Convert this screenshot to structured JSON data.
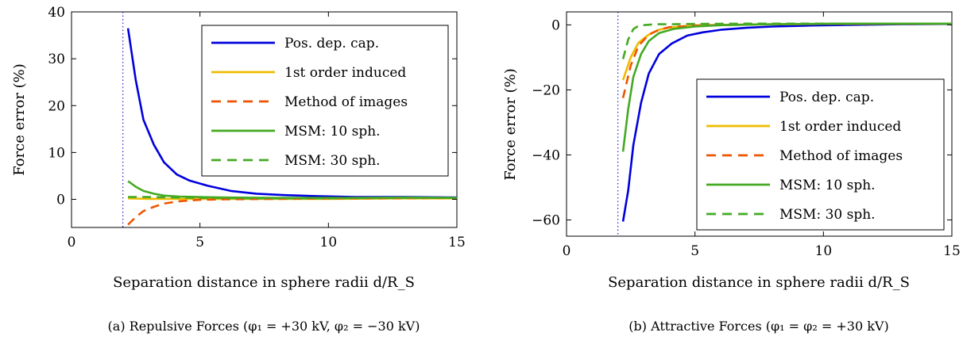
{
  "chart_data": [
    {
      "type": "line",
      "caption": "(a) Repulsive Forces (φ₁ = +30 kV, φ₂ = −30 kV)",
      "xlabel": "Separation distance in sphere radii d/R_S",
      "ylabel": "Force error (%)",
      "xlim": [
        0,
        15
      ],
      "ylim": [
        -6,
        40
      ],
      "xticks": [
        0,
        5,
        10,
        15
      ],
      "yticks": [
        0,
        10,
        20,
        30,
        40
      ],
      "ytick_labels": [
        "0",
        "10",
        "20",
        "30",
        "40"
      ],
      "vline_x": 2,
      "grid": false,
      "legend_position": "top-right",
      "series": [
        {
          "name": "Pos. dep. cap.",
          "color": "#0000dd",
          "dash": "solid",
          "x": [
            2.2,
            2.5,
            2.8,
            3.2,
            3.6,
            4.1,
            4.6,
            5.3,
            6.2,
            7.2,
            8.3,
            9.5,
            11,
            13,
            15
          ],
          "y": [
            36.5,
            25.5,
            17,
            11.7,
            7.9,
            5.3,
            4,
            2.9,
            1.8,
            1.2,
            0.9,
            0.7,
            0.5,
            0.5,
            0.4
          ]
        },
        {
          "name": "1st order induced",
          "color": "#eebb00",
          "dash": "solid",
          "x": [
            2.2,
            3,
            4,
            5,
            7,
            10,
            13,
            15
          ],
          "y": [
            0.2,
            0.1,
            0.1,
            0.1,
            0.1,
            0.1,
            0.2,
            0.2
          ]
        },
        {
          "name": "Method of images",
          "color": "#ee5500",
          "dash": "dashed",
          "x": [
            2.2,
            2.5,
            2.8,
            3.2,
            3.6,
            4.2,
            5,
            6,
            8,
            11,
            15
          ],
          "y": [
            -5.4,
            -3.8,
            -2.5,
            -1.6,
            -0.9,
            -0.4,
            -0.1,
            0,
            0.1,
            0.2,
            0.3
          ]
        },
        {
          "name": "MSM: 10 sph.",
          "color": "#44aa22",
          "dash": "solid",
          "x": [
            2.2,
            2.5,
            2.8,
            3.2,
            3.6,
            4.2,
            5,
            6,
            8,
            11,
            13,
            15
          ],
          "y": [
            3.9,
            2.7,
            1.8,
            1.2,
            0.8,
            0.6,
            0.5,
            0.4,
            0.3,
            0.3,
            0.4,
            0.3
          ]
        },
        {
          "name": "MSM: 30 sph.",
          "color": "#44aa22",
          "dash": "dashed",
          "x": [
            2.2,
            3,
            4,
            5,
            7,
            10,
            13,
            15
          ],
          "y": [
            0.5,
            0.5,
            0.4,
            0.3,
            0.2,
            0.2,
            0.3,
            0.3
          ]
        }
      ]
    },
    {
      "type": "line",
      "caption": "(b) Attractive Forces (φ₁ = φ₂ = +30 kV)",
      "xlabel": "Separation distance in sphere radii d/R_S",
      "ylabel": "Force error (%)",
      "xlim": [
        0,
        15
      ],
      "ylim": [
        -65,
        4
      ],
      "xticks": [
        0,
        5,
        10,
        15
      ],
      "yticks": [
        0,
        -20,
        -40,
        -60
      ],
      "ytick_labels": [
        "0",
        "−20",
        "−40",
        "−60"
      ],
      "vline_x": 2,
      "grid": false,
      "legend_position": "bottom-right",
      "series": [
        {
          "name": "Pos. dep. cap.",
          "color": "#0000dd",
          "dash": "solid",
          "x": [
            2.2,
            2.4,
            2.6,
            2.9,
            3.2,
            3.6,
            4.1,
            4.7,
            5.3,
            6,
            7,
            8,
            9.5,
            11,
            13,
            15
          ],
          "y": [
            -60.5,
            -51,
            -37,
            -24,
            -15,
            -9,
            -5.7,
            -3.3,
            -2.3,
            -1.5,
            -0.9,
            -0.5,
            -0.2,
            0,
            0.2,
            0.3
          ]
        },
        {
          "name": "1st order induced",
          "color": "#eebb00",
          "dash": "solid",
          "x": [
            2.2,
            2.5,
            2.8,
            3.2,
            3.6,
            4,
            5,
            7,
            10,
            15
          ],
          "y": [
            -17,
            -10,
            -5.5,
            -3,
            -1.5,
            -0.8,
            -0.2,
            0.1,
            0.3,
            0.4
          ]
        },
        {
          "name": "Method of images",
          "color": "#ee5500",
          "dash": "dashed",
          "x": [
            2.2,
            2.5,
            2.8,
            3.2,
            3.6,
            4,
            5,
            7,
            10,
            15
          ],
          "y": [
            -22.5,
            -12.5,
            -6.5,
            -3,
            -1.5,
            -0.7,
            -0.2,
            0.1,
            0.3,
            0.4
          ]
        },
        {
          "name": "MSM: 10 sph.",
          "color": "#44aa22",
          "dash": "solid",
          "x": [
            2.2,
            2.4,
            2.6,
            2.9,
            3.2,
            3.6,
            4.2,
            5,
            6,
            8,
            11,
            15
          ],
          "y": [
            -39,
            -26,
            -16,
            -9,
            -5,
            -2.5,
            -1.2,
            -0.5,
            -0.1,
            0.2,
            0.4,
            0.4
          ]
        },
        {
          "name": "MSM: 30 sph.",
          "color": "#44aa22",
          "dash": "dashed",
          "x": [
            2.2,
            2.4,
            2.6,
            2.8,
            3.1,
            3.5,
            4,
            5,
            7,
            10,
            15
          ],
          "y": [
            -10.5,
            -4.5,
            -1.3,
            -0.3,
            0,
            0.2,
            0.2,
            0.3,
            0.4,
            0.4,
            0.4
          ]
        }
      ]
    }
  ]
}
